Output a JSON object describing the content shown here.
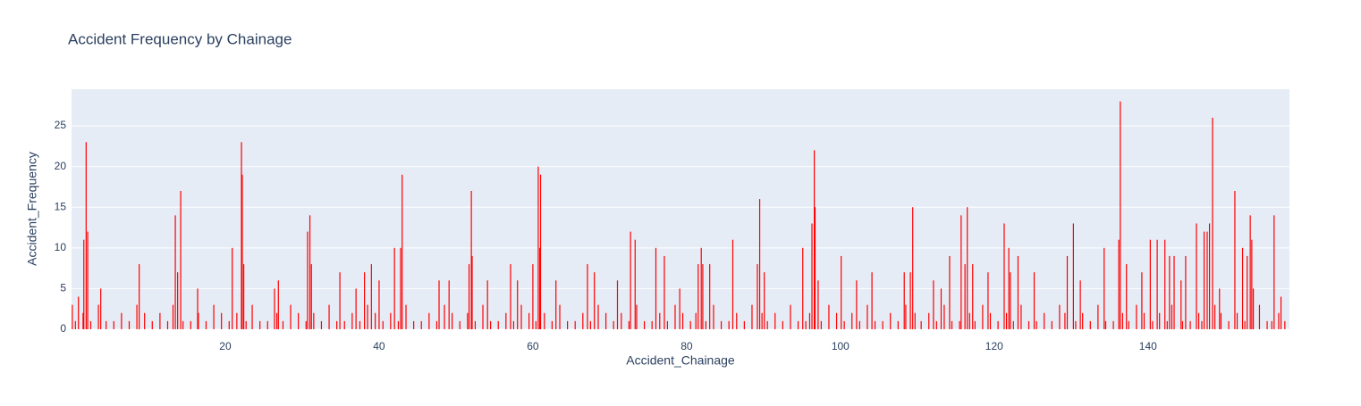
{
  "chart_data": {
    "type": "bar",
    "title": "Accident Frequency by Chainage",
    "x_label": "Accident_Chainage",
    "y_label": "Accident_Frequency",
    "color": "#ff0000",
    "xlim": [
      0,
      158.4
    ],
    "ylim": [
      0,
      29.5
    ],
    "xticks": [
      20,
      40,
      60,
      80,
      100,
      120,
      140
    ],
    "yticks": [
      0,
      5,
      10,
      15,
      20,
      25
    ],
    "grid": true,
    "x": [
      0.1,
      0.9,
      1.6,
      1.9,
      2.1,
      3.8,
      8.8,
      13.5,
      13.8,
      14.2,
      16.4,
      20.9,
      22.1,
      22.2,
      22.4,
      26.4,
      26.9,
      30.7,
      31.0,
      31.2,
      34.9,
      37.0,
      38.1,
      39.0,
      40.0,
      42.0,
      42.8,
      43.0,
      47.8,
      49.1,
      51.7,
      52.0,
      52.1,
      54.1,
      57.1,
      58.0,
      60.0,
      60.7,
      60.9,
      61.0,
      63.0,
      67.1,
      68.0,
      71.0,
      72.7,
      73.3,
      76.0,
      77.1,
      79.1,
      81.5,
      81.9,
      82.1,
      83.0,
      86.0,
      89.2,
      89.5,
      90.1,
      95.1,
      96.3,
      96.6,
      96.7,
      97.1,
      100.1,
      102.1,
      104.1,
      108.3,
      109.1,
      109.4,
      112.1,
      113.1,
      114.2,
      115.7,
      116.2,
      116.5,
      117.2,
      119.2,
      121.3,
      121.9,
      122.1,
      123.1,
      125.2,
      129.5,
      130.3,
      131.2,
      134.3,
      136.2,
      136.4,
      137.2,
      139.2,
      140.3,
      141.2,
      142.2,
      142.8,
      143.4,
      144.3,
      144.9,
      146.3,
      147.3,
      147.7,
      148.0,
      148.4,
      149.3,
      151.3,
      152.3,
      152.9,
      153.3,
      153.5,
      153.7,
      156.4,
      157.3,
      0.5,
      1.5,
      2.5,
      3.5,
      4.5,
      5.5,
      6.5,
      7.5,
      8.5,
      9.5,
      10.5,
      11.5,
      12.5,
      13.2,
      14.5,
      15.5,
      16.5,
      17.5,
      18.5,
      19.5,
      20.5,
      21.5,
      22.7,
      23.5,
      24.5,
      25.5,
      26.7,
      27.5,
      28.5,
      29.5,
      30.5,
      31.5,
      32.5,
      33.5,
      34.5,
      35.5,
      36.5,
      37.5,
      38.5,
      39.5,
      40.5,
      41.5,
      42.5,
      43.5,
      44.5,
      45.5,
      46.5,
      47.5,
      48.5,
      49.5,
      50.5,
      51.5,
      52.5,
      53.5,
      54.5,
      55.5,
      56.5,
      57.5,
      58.5,
      59.5,
      60.4,
      61.5,
      62.5,
      63.5,
      64.5,
      65.5,
      66.5,
      67.5,
      68.5,
      69.5,
      70.5,
      71.5,
      72.5,
      73.5,
      74.5,
      75.5,
      76.5,
      77.5,
      78.5,
      79.5,
      80.5,
      81.2,
      82.5,
      83.5,
      84.5,
      85.5,
      86.5,
      87.5,
      88.5,
      89.8,
      90.5,
      91.5,
      92.5,
      93.5,
      94.5,
      95.5,
      96.0,
      97.5,
      98.5,
      99.5,
      100.5,
      101.5,
      102.5,
      103.5,
      104.5,
      105.5,
      106.5,
      107.5,
      108.5,
      109.7,
      110.5,
      111.5,
      112.5,
      113.5,
      114.5,
      115.5,
      116.8,
      117.5,
      118.5,
      119.5,
      120.5,
      121.6,
      122.5,
      123.5,
      124.5,
      125.5,
      126.5,
      127.5,
      128.5,
      129.2,
      130.6,
      131.5,
      132.5,
      133.5,
      134.5,
      135.5,
      136.7,
      137.5,
      138.5,
      139.5,
      140.6,
      141.5,
      142.5,
      143.1,
      144.5,
      145.5,
      146.6,
      147.0,
      148.7,
      149.5,
      150.5,
      151.6,
      152.6,
      154.5,
      155.5,
      156.1,
      157.0,
      157.8
    ],
    "values": [
      3,
      4,
      11,
      23,
      12,
      5,
      8,
      14,
      7,
      17,
      5,
      10,
      23,
      19,
      8,
      5,
      6,
      12,
      14,
      8,
      7,
      5,
      7,
      8,
      6,
      10,
      10,
      19,
      6,
      6,
      8,
      17,
      9,
      6,
      8,
      6,
      8,
      20,
      10,
      19,
      6,
      8,
      7,
      6,
      12,
      11,
      10,
      9,
      5,
      8,
      10,
      8,
      8,
      11,
      8,
      16,
      7,
      10,
      13,
      22,
      15,
      6,
      9,
      6,
      7,
      7,
      7,
      15,
      6,
      5,
      9,
      14,
      8,
      15,
      8,
      7,
      13,
      10,
      7,
      9,
      7,
      9,
      13,
      6,
      10,
      11,
      28,
      8,
      7,
      11,
      11,
      11,
      9,
      9,
      6,
      9,
      13,
      12,
      12,
      13,
      26,
      5,
      17,
      10,
      9,
      14,
      11,
      5,
      14,
      4,
      1,
      2,
      1,
      3,
      1,
      1,
      2,
      1,
      3,
      2,
      1,
      2,
      1,
      3,
      1,
      1,
      2,
      1,
      3,
      2,
      1,
      2,
      1,
      3,
      1,
      1,
      2,
      1,
      3,
      2,
      1,
      2,
      1,
      3,
      1,
      1,
      2,
      1,
      3,
      2,
      1,
      2,
      1,
      3,
      1,
      1,
      2,
      1,
      3,
      2,
      1,
      2,
      1,
      3,
      1,
      1,
      2,
      1,
      3,
      2,
      1,
      2,
      1,
      3,
      1,
      1,
      2,
      1,
      3,
      2,
      1,
      2,
      1,
      3,
      1,
      1,
      2,
      1,
      3,
      2,
      1,
      2,
      1,
      3,
      1,
      1,
      2,
      1,
      3,
      2,
      1,
      2,
      1,
      3,
      1,
      1,
      2,
      1,
      3,
      2,
      1,
      2,
      1,
      3,
      1,
      1,
      2,
      1,
      3,
      2,
      1,
      2,
      1,
      3,
      1,
      1,
      2,
      1,
      3,
      2,
      1,
      2,
      1,
      3,
      1,
      1,
      2,
      1,
      3,
      2,
      1,
      2,
      1,
      3,
      1,
      1,
      2,
      1,
      3,
      2,
      1,
      2,
      1,
      3,
      1,
      1,
      2,
      1,
      3,
      2,
      1,
      2,
      1,
      3,
      1,
      1,
      2,
      1
    ]
  }
}
